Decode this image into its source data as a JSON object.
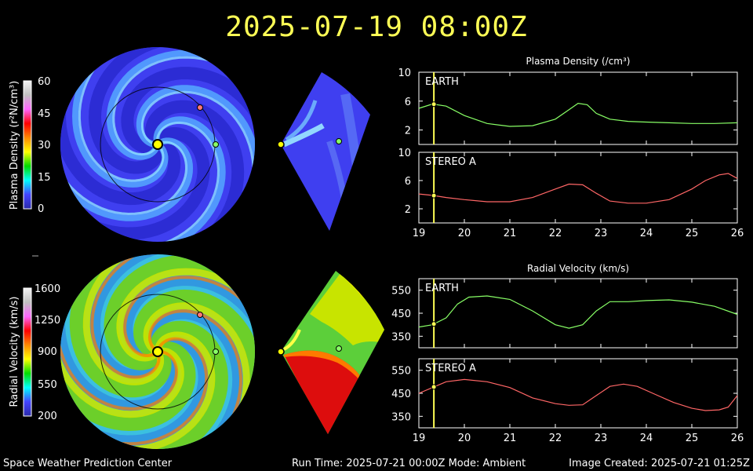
{
  "header": {
    "timestamp": "2025-07-19  08:00Z"
  },
  "footer": {
    "left": "Space Weather Prediction Center",
    "center": "Run Time: 2025-07-21 00:00Z  Mode: Ambient",
    "right": "Image Created: 2025-07-21 01:25Z"
  },
  "colorbars": {
    "density": {
      "label": "Plasma Density (r²N/cm³)",
      "ticks": [
        "60",
        "45",
        "30",
        "15",
        "0"
      ]
    },
    "velocity": {
      "label": "Radial Velocity (km/s)",
      "ticks": [
        "1600",
        "1250",
        "900",
        "550",
        "200"
      ]
    },
    "colors": [
      "#f2f2f2",
      "#c0c0c0",
      "#ff66ff",
      "#ff0000",
      "#ff8800",
      "#ffff00",
      "#00dd00",
      "#00ffff",
      "#4444ff",
      "#2a2aaa"
    ]
  },
  "markers": {
    "sun_color": "#ffff00",
    "earth_color": "#88ff66",
    "stereo_color": "#ff7777"
  },
  "chart_data": [
    {
      "type": "line",
      "title": "Plasma Density (/cm³)",
      "xlim": [
        19,
        26
      ],
      "xticks": [
        "19",
        "20",
        "21",
        "22",
        "23",
        "24",
        "25",
        "26"
      ],
      "current_time": 19.33,
      "panels": [
        {
          "label": "EARTH",
          "color": "#88ff66",
          "ylim": [
            0,
            10
          ],
          "yticks": [
            "10",
            "6",
            "2"
          ],
          "x": [
            19,
            19.3,
            19.6,
            20,
            20.5,
            21,
            21.5,
            22,
            22.3,
            22.5,
            22.7,
            22.9,
            23.2,
            23.6,
            24,
            24.5,
            25,
            25.5,
            26
          ],
          "y": [
            5.0,
            5.6,
            5.3,
            4.0,
            2.9,
            2.5,
            2.6,
            3.5,
            4.8,
            5.7,
            5.5,
            4.3,
            3.5,
            3.2,
            3.1,
            3.0,
            2.9,
            2.9,
            3.0
          ]
        },
        {
          "label": "STEREO A",
          "color": "#ff6666",
          "ylim": [
            0,
            10
          ],
          "yticks": [
            "10",
            "6",
            "2"
          ],
          "x": [
            19,
            19.3,
            19.6,
            20,
            20.5,
            21,
            21.5,
            22,
            22.3,
            22.6,
            22.9,
            23.2,
            23.6,
            24,
            24.5,
            25,
            25.3,
            25.6,
            25.8,
            26
          ],
          "y": [
            4.1,
            3.9,
            3.6,
            3.3,
            3.0,
            3.0,
            3.6,
            4.8,
            5.5,
            5.4,
            4.2,
            3.1,
            2.8,
            2.8,
            3.3,
            4.8,
            6.0,
            6.8,
            7.0,
            6.3
          ]
        }
      ]
    },
    {
      "type": "line",
      "title": "Radial Velocity (km/s)",
      "xlim": [
        19,
        26
      ],
      "xticks": [
        "19",
        "20",
        "21",
        "22",
        "23",
        "24",
        "25",
        "26"
      ],
      "current_time": 19.33,
      "panels": [
        {
          "label": "EARTH",
          "color": "#88ff66",
          "ylim": [
            300,
            600
          ],
          "yticks": [
            "550",
            "450",
            "350"
          ],
          "x": [
            19,
            19.3,
            19.6,
            19.85,
            20.1,
            20.5,
            21,
            21.5,
            22,
            22.3,
            22.6,
            22.9,
            23.2,
            23.6,
            24,
            24.5,
            25,
            25.5,
            26
          ],
          "y": [
            390,
            400,
            430,
            490,
            520,
            525,
            510,
            460,
            400,
            385,
            400,
            460,
            500,
            500,
            505,
            508,
            498,
            480,
            445
          ]
        },
        {
          "label": "STEREO A",
          "color": "#ff6666",
          "ylim": [
            300,
            600
          ],
          "yticks": [
            "550",
            "450",
            "350"
          ],
          "x": [
            19,
            19.3,
            19.6,
            20,
            20.5,
            21,
            21.5,
            22,
            22.3,
            22.6,
            22.9,
            23.2,
            23.5,
            23.8,
            24.2,
            24.6,
            25,
            25.3,
            25.6,
            25.8,
            26
          ],
          "y": [
            450,
            475,
            500,
            510,
            500,
            475,
            430,
            405,
            398,
            400,
            440,
            480,
            490,
            480,
            445,
            410,
            385,
            375,
            378,
            390,
            440
          ]
        }
      ]
    }
  ]
}
